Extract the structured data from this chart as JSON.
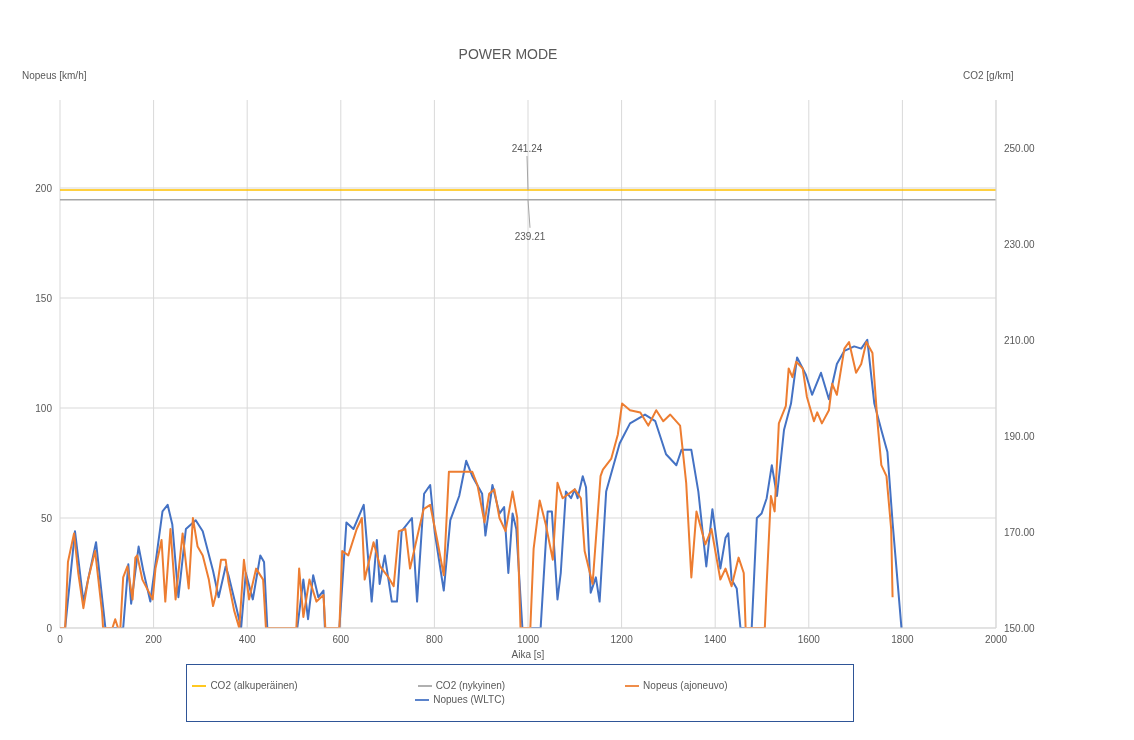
{
  "chart_data": {
    "type": "line",
    "title": "POWER MODE",
    "xlabel": "Aika [s]",
    "ylabel": "Nopeus [km/h]",
    "y2label": "CO2 [g/km]",
    "xlim": [
      0,
      2000
    ],
    "xticks": [
      0,
      200,
      400,
      600,
      800,
      1000,
      1200,
      1400,
      1600,
      1800,
      2000
    ],
    "ylim": [
      0,
      240
    ],
    "yticks": [
      0,
      50,
      100,
      150,
      200
    ],
    "y2lim": [
      150,
      260
    ],
    "y2ticks": [
      {
        "value": 150,
        "label": "150.00"
      },
      {
        "value": 170,
        "label": "170.00"
      },
      {
        "value": 190,
        "label": "190.00"
      },
      {
        "value": 210,
        "label": "210.00"
      },
      {
        "value": 230,
        "label": "230.00"
      },
      {
        "value": 250,
        "label": "250.00"
      }
    ],
    "grid": true,
    "legend": "bottom",
    "marker": "none",
    "line_style": "solid",
    "series": [
      {
        "name": "Nopues (WLTC)",
        "color": "#4472c4",
        "x": [
          0,
          11,
          32,
          50,
          77,
          97,
          135,
          146,
          152,
          168,
          178,
          193,
          219,
          230,
          240,
          253,
          269,
          290,
          305,
          327,
          339,
          354,
          360,
          376,
          387,
          397,
          412,
          428,
          436,
          443,
          507,
          520,
          530,
          541,
          552,
          563,
          566,
          597,
          612,
          627,
          649,
          666,
          677,
          683,
          694,
          709,
          720,
          730,
          752,
          763,
          778,
          791,
          801,
          820,
          834,
          853,
          868,
          881,
          902,
          909,
          924,
          939,
          949,
          958,
          967,
          975,
          988,
          1027,
          1042,
          1051,
          1063,
          1070,
          1081,
          1092,
          1100,
          1106,
          1117,
          1124,
          1134,
          1145,
          1153,
          1167,
          1196,
          1218,
          1250,
          1272,
          1295,
          1317,
          1328,
          1349,
          1364,
          1381,
          1394,
          1411,
          1422,
          1428,
          1435,
          1446,
          1454,
          1478,
          1489,
          1499,
          1510,
          1521,
          1532,
          1547,
          1562,
          1575,
          1594,
          1607,
          1626,
          1643,
          1660,
          1676,
          1697,
          1712,
          1725,
          1740,
          1755,
          1768,
          1779,
          1798
        ],
        "values": [
          0,
          0,
          44,
          12,
          39,
          0,
          0,
          29,
          11,
          37,
          26,
          12,
          53,
          56,
          47,
          14,
          45,
          49,
          44,
          26,
          14,
          28,
          24,
          10,
          0,
          25,
          13,
          33,
          30,
          0,
          0,
          22,
          4,
          24,
          14,
          17,
          0,
          0,
          48,
          45,
          56,
          12,
          40,
          20,
          33,
          12,
          12,
          44,
          50,
          12,
          61,
          65,
          43,
          17,
          49,
          60,
          76,
          69,
          61,
          42,
          65,
          52,
          55,
          25,
          52,
          45,
          0,
          0,
          53,
          53,
          13,
          25,
          62,
          59,
          63,
          59,
          69,
          64,
          16,
          23,
          12,
          62,
          84,
          93,
          97,
          94,
          79,
          74,
          81,
          81,
          62,
          28,
          54,
          27,
          41,
          43,
          22,
          18,
          0,
          0,
          50,
          52,
          59,
          74,
          60,
          90,
          102,
          123,
          115,
          106,
          116,
          104,
          120,
          126,
          128,
          127,
          131,
          102,
          90,
          80,
          48,
          0
        ]
      },
      {
        "name": "Nopeus (ajoneuvo)",
        "color": "#ed7d31",
        "x": [
          0,
          11,
          17,
          30,
          39,
          50,
          60,
          75,
          90,
          92,
          112,
          118,
          124,
          129,
          135,
          144,
          155,
          161,
          165,
          176,
          198,
          204,
          217,
          225,
          236,
          247,
          262,
          275,
          284,
          294,
          305,
          318,
          327,
          333,
          344,
          354,
          360,
          372,
          383,
          393,
          404,
          419,
          434,
          440,
          505,
          511,
          520,
          533,
          548,
          563,
          567,
          597,
          603,
          616,
          634,
          645,
          651,
          670,
          684,
          702,
          713,
          724,
          738,
          748,
          766,
          777,
          791,
          806,
          820,
          831,
          881,
          892,
          907,
          917,
          928,
          939,
          952,
          967,
          977,
          984,
          1005,
          1012,
          1025,
          1038,
          1053,
          1063,
          1074,
          1100,
          1113,
          1121,
          1138,
          1155,
          1160,
          1178,
          1192,
          1201,
          1218,
          1240,
          1257,
          1274,
          1289,
          1304,
          1325,
          1338,
          1349,
          1360,
          1379,
          1392,
          1411,
          1422,
          1435,
          1450,
          1461,
          1465,
          1506,
          1510,
          1519,
          1527,
          1536,
          1551,
          1557,
          1565,
          1573,
          1587,
          1596,
          1611,
          1618,
          1628,
          1643,
          1650,
          1660,
          1676,
          1686,
          1701,
          1712,
          1723,
          1736,
          1747,
          1755,
          1766,
          1776,
          1779
        ],
        "values": [
          0,
          0,
          30,
          43,
          25,
          9,
          22,
          35,
          7,
          0,
          0,
          4,
          0,
          0,
          23,
          28,
          13,
          32,
          33,
          22,
          13,
          27,
          40,
          12,
          45,
          13,
          43,
          18,
          50,
          37,
          33,
          22,
          10,
          15,
          31,
          31,
          21,
          8,
          0,
          31,
          13,
          27,
          22,
          0,
          0,
          27,
          5,
          22,
          12,
          15,
          0,
          0,
          35,
          33,
          45,
          50,
          22,
          39,
          28,
          23,
          19,
          44,
          45,
          27,
          44,
          54,
          56,
          40,
          24,
          71,
          71,
          65,
          48,
          61,
          63,
          50,
          44,
          62,
          50,
          0,
          0,
          36,
          58,
          47,
          31,
          66,
          59,
          63,
          59,
          35,
          20,
          69,
          72,
          77,
          88,
          102,
          99,
          98,
          92,
          99,
          94,
          97,
          92,
          66,
          23,
          53,
          38,
          45,
          22,
          27,
          19,
          32,
          25,
          0,
          0,
          20,
          60,
          53,
          93,
          101,
          118,
          114,
          121,
          118,
          105,
          94,
          98,
          93,
          99,
          111,
          106,
          127,
          130,
          116,
          120,
          130,
          125,
          93,
          74,
          69,
          45,
          14
        ]
      },
      {
        "name": "CO2 (nykyinen)",
        "color": "#a5a5a5",
        "axis": "y2",
        "x": [
          0,
          1000,
          2000
        ],
        "values": [
          239.21,
          239.21,
          239.21
        ],
        "value_labels": [
          null,
          "239.21",
          null
        ]
      },
      {
        "name": "CO2 (alkuperäinen)",
        "color": "#ffc000",
        "axis": "y2",
        "x": [
          0,
          1000,
          2000
        ],
        "values": [
          241.24,
          241.24,
          241.24
        ],
        "value_labels": [
          null,
          "241.24",
          null
        ]
      }
    ]
  }
}
